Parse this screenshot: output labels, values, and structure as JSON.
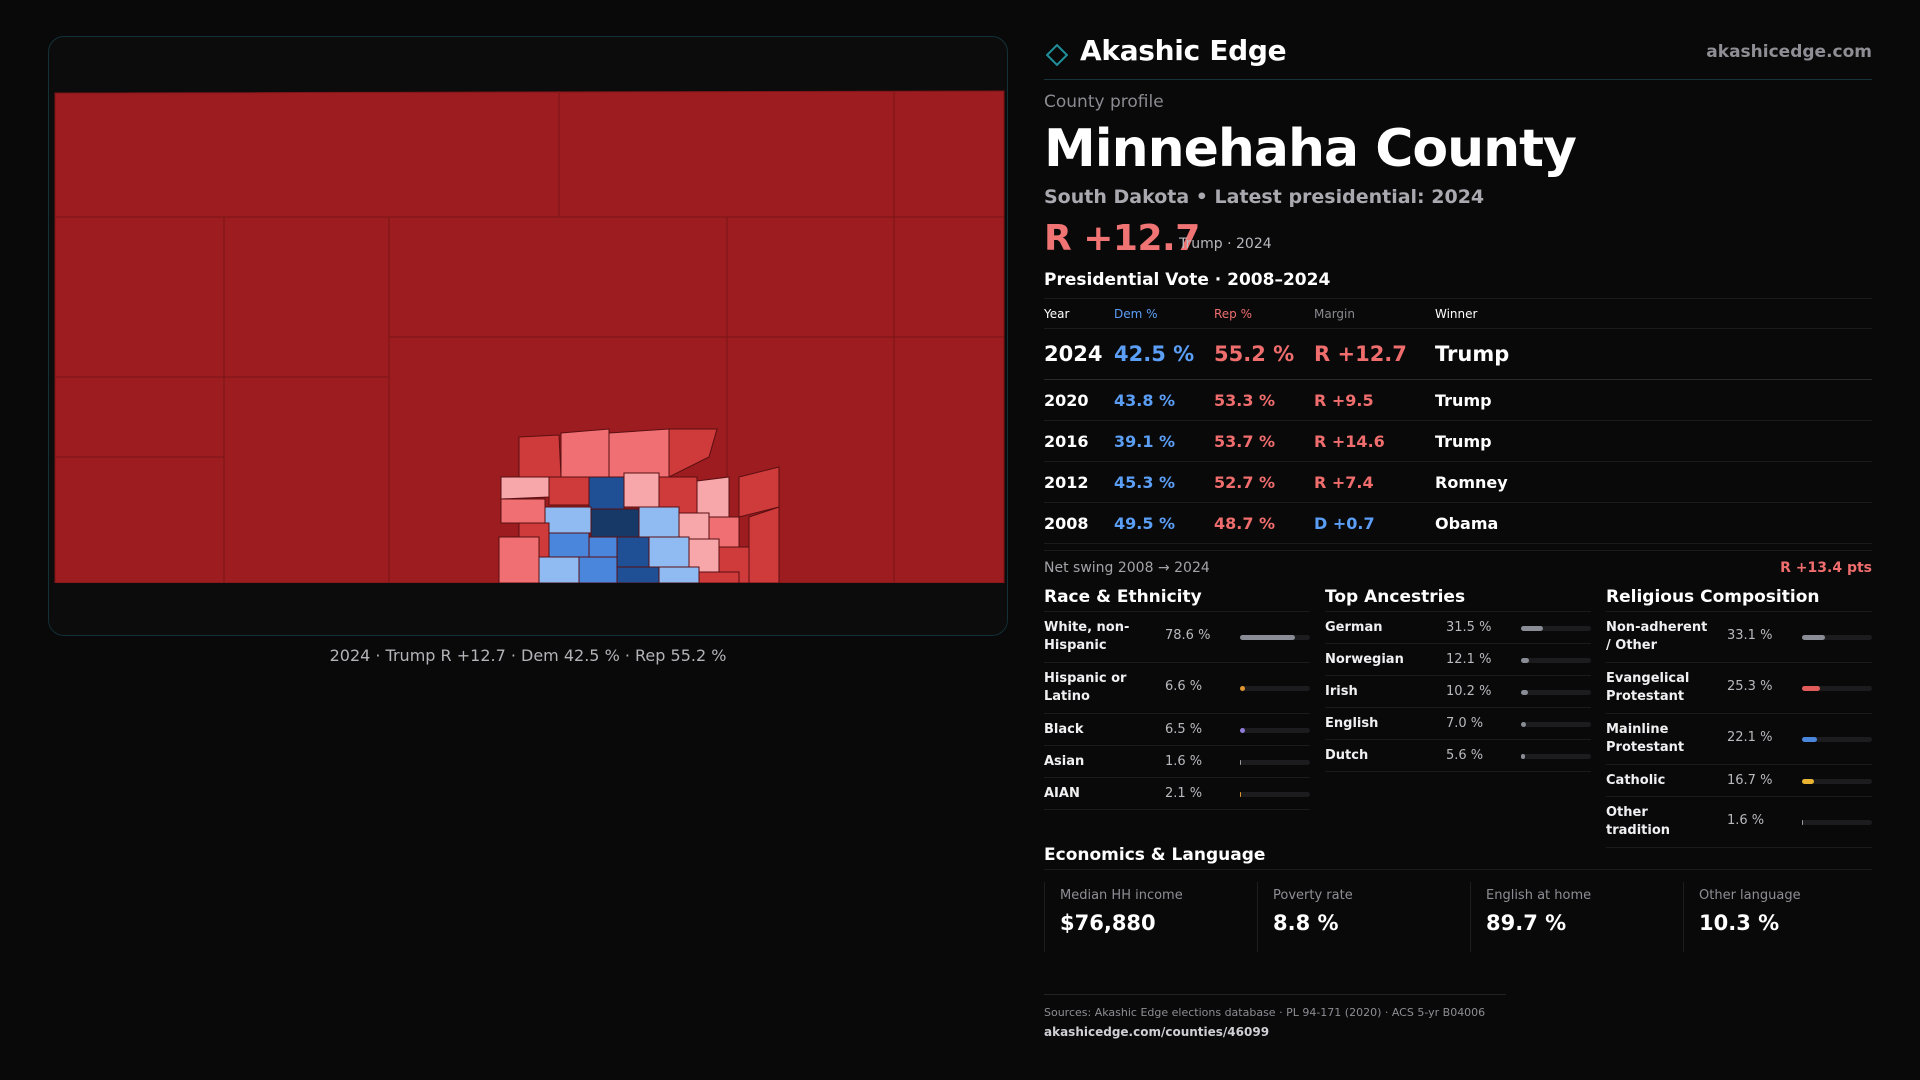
{
  "brand": {
    "name": "Akashic Edge",
    "url": "akashicedge.com",
    "accent": "#1f8f9a"
  },
  "eyebrow": "County profile",
  "county": "Minnehaha County",
  "subtitle": "South Dakota • Latest presidential: 2024",
  "headline": {
    "margin": "R +12.7",
    "note": "Trump · 2024"
  },
  "map": {
    "caption": "2024 · Trump R +12.7 · Dem 42.5 % · Rep 55.2 %",
    "colors": {
      "rep_strong": "#9c1c1f",
      "rep_mid": "#cf3a3a",
      "rep_light": "#ef6f72",
      "rep_pale": "#f7a7aa",
      "dem_light": "#8fbbf2",
      "dem_mid": "#4a86dc",
      "dem_strong": "#1f4f95",
      "dem_deep": "#173968"
    }
  },
  "vote": {
    "title": "Presidential Vote · 2008–2024",
    "headers": {
      "year": "Year",
      "dem": "Dem %",
      "rep": "Rep %",
      "margin": "Margin",
      "winner": "Winner"
    },
    "rows": [
      {
        "year": "2024",
        "dem": "42.5 %",
        "rep": "55.2 %",
        "margin": "R +12.7",
        "party": "R",
        "winner": "Trump"
      },
      {
        "year": "2020",
        "dem": "43.8 %",
        "rep": "53.3 %",
        "margin": "R +9.5",
        "party": "R",
        "winner": "Trump"
      },
      {
        "year": "2016",
        "dem": "39.1 %",
        "rep": "53.7 %",
        "margin": "R +14.6",
        "party": "R",
        "winner": "Trump"
      },
      {
        "year": "2012",
        "dem": "45.3 %",
        "rep": "52.7 %",
        "margin": "R +7.4",
        "party": "R",
        "winner": "Romney"
      },
      {
        "year": "2008",
        "dem": "49.5 %",
        "rep": "48.7 %",
        "margin": "D +0.7",
        "party": "D",
        "winner": "Obama"
      }
    ],
    "swing_label": "Net swing 2008 → 2024",
    "swing_value": "R +13.4 pts"
  },
  "race": {
    "title": "Race & Ethnicity",
    "items": [
      {
        "label": "White, non-Hispanic",
        "value": "78.6 %",
        "share": 0.786,
        "color": "#8a8d95"
      },
      {
        "label": "Hispanic or Latino",
        "value": "6.6 %",
        "share": 0.066,
        "color": "#e0962e"
      },
      {
        "label": "Black",
        "value": "6.5 %",
        "share": 0.065,
        "color": "#8f7bd8"
      },
      {
        "label": "Asian",
        "value": "1.6 %",
        "share": 0.016,
        "color": "#9a9aa0"
      },
      {
        "label": "AIAN",
        "value": "2.1 %",
        "share": 0.021,
        "color": "#e0962e"
      }
    ]
  },
  "ancestry": {
    "title": "Top Ancestries",
    "items": [
      {
        "label": "German",
        "value": "31.5 %",
        "share": 0.315,
        "color": "#8a8d95"
      },
      {
        "label": "Norwegian",
        "value": "12.1 %",
        "share": 0.121,
        "color": "#8a8d95"
      },
      {
        "label": "Irish",
        "value": "10.2 %",
        "share": 0.102,
        "color": "#8a8d95"
      },
      {
        "label": "English",
        "value": "7.0 %",
        "share": 0.07,
        "color": "#8a8d95"
      },
      {
        "label": "Dutch",
        "value": "5.6 %",
        "share": 0.056,
        "color": "#8a8d95"
      }
    ]
  },
  "religion": {
    "title": "Religious Composition",
    "items": [
      {
        "label": "Non-adherent / Other",
        "value": "33.1 %",
        "share": 0.331,
        "color": "#8a8d95"
      },
      {
        "label": "Evangelical Protestant",
        "value": "25.3 %",
        "share": 0.253,
        "color": "#e25b5b"
      },
      {
        "label": "Mainline Protestant",
        "value": "22.1 %",
        "share": 0.221,
        "color": "#4a86dc"
      },
      {
        "label": "Catholic",
        "value": "16.7 %",
        "share": 0.167,
        "color": "#e8b431"
      },
      {
        "label": "Other tradition",
        "value": "1.6 %",
        "share": 0.016,
        "color": "#9a9aa0"
      }
    ]
  },
  "economics": {
    "title": "Economics & Language",
    "cells": [
      {
        "label": "Median HH income",
        "value": "$76,880"
      },
      {
        "label": "Poverty rate",
        "value": "8.8 %"
      },
      {
        "label": "English at home",
        "value": "89.7 %"
      },
      {
        "label": "Other language",
        "value": "10.3 %"
      }
    ]
  },
  "footer": {
    "sources": "Sources: Akashic Edge elections database · PL 94-171 (2020) · ACS 5-yr B04006",
    "url": "akashicedge.com/counties/46099"
  }
}
